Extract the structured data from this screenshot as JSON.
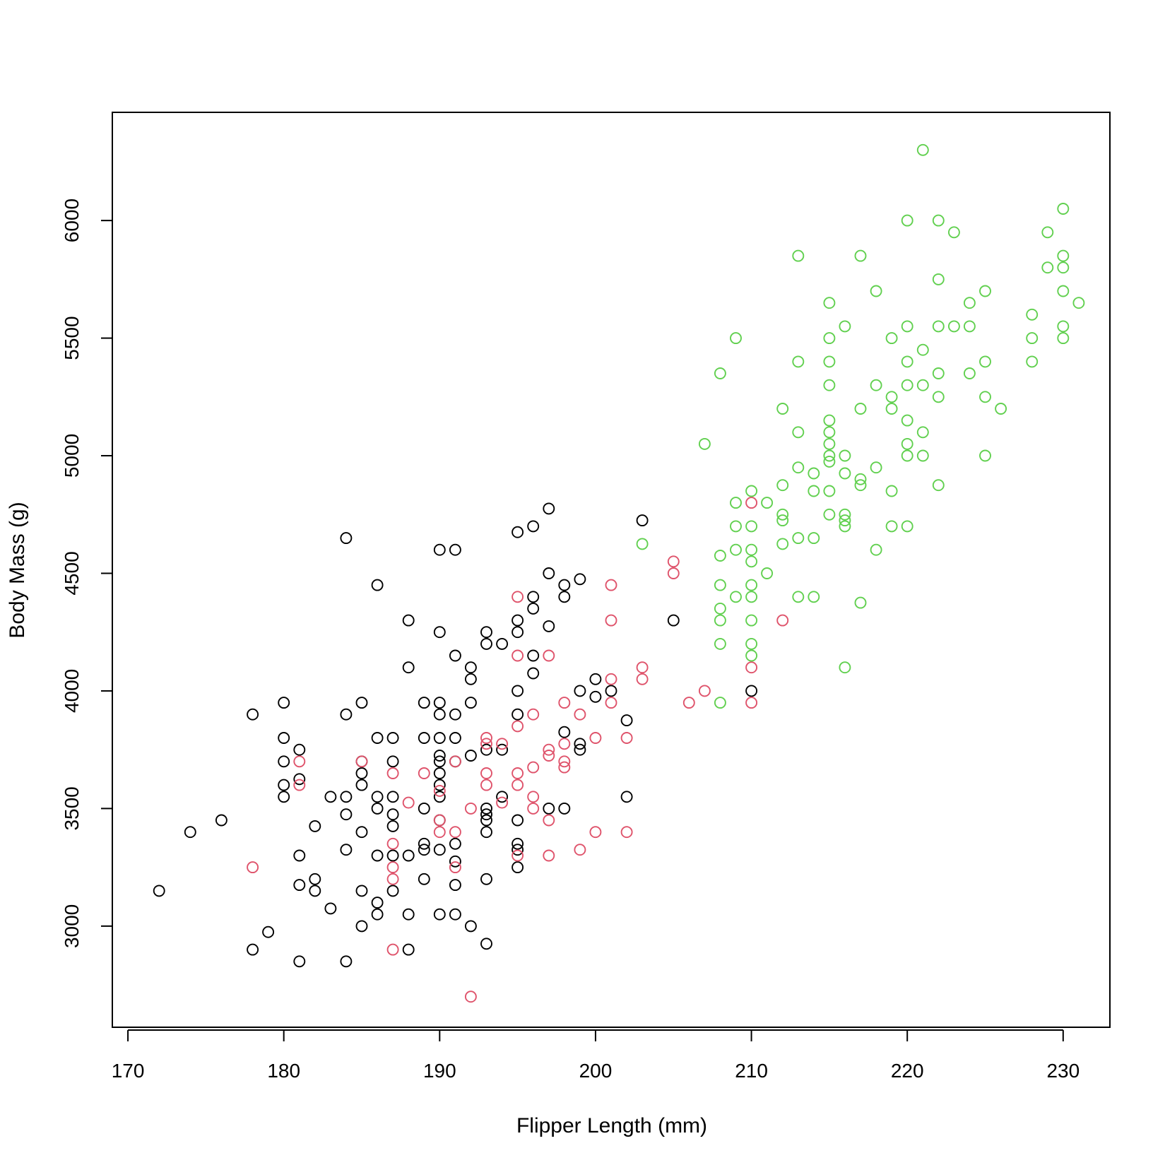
{
  "chart_data": {
    "type": "scatter",
    "title": "",
    "xlabel": "Flipper Length (mm)",
    "ylabel": "Body Mass (g)",
    "xlim": [
      169,
      233
    ],
    "ylim": [
      2570,
      6460
    ],
    "xticks": [
      170,
      180,
      190,
      200,
      210,
      220,
      230
    ],
    "yticks": [
      3000,
      3500,
      4000,
      4500,
      5000,
      5500,
      6000
    ],
    "grid": false,
    "legend": "none",
    "series": [
      {
        "color": "#000000",
        "points": [
          [
            172,
            3150
          ],
          [
            174,
            3400
          ],
          [
            176,
            3450
          ],
          [
            178,
            3900
          ],
          [
            178,
            2900
          ],
          [
            179,
            2975
          ],
          [
            180,
            3950
          ],
          [
            180,
            3800
          ],
          [
            180,
            3700
          ],
          [
            180,
            3600
          ],
          [
            180,
            3550
          ],
          [
            181,
            3750
          ],
          [
            181,
            3625
          ],
          [
            181,
            3300
          ],
          [
            181,
            3175
          ],
          [
            181,
            2850
          ],
          [
            182,
            3425
          ],
          [
            182,
            3200
          ],
          [
            182,
            3150
          ],
          [
            183,
            3550
          ],
          [
            183,
            3075
          ],
          [
            184,
            4650
          ],
          [
            184,
            3900
          ],
          [
            184,
            3550
          ],
          [
            184,
            3475
          ],
          [
            184,
            3325
          ],
          [
            184,
            2850
          ],
          [
            185,
            3950
          ],
          [
            185,
            3700
          ],
          [
            185,
            3650
          ],
          [
            185,
            3600
          ],
          [
            185,
            3400
          ],
          [
            185,
            3150
          ],
          [
            185,
            3000
          ],
          [
            186,
            4450
          ],
          [
            186,
            3800
          ],
          [
            186,
            3550
          ],
          [
            186,
            3500
          ],
          [
            186,
            3300
          ],
          [
            186,
            3100
          ],
          [
            186,
            3050
          ],
          [
            187,
            3800
          ],
          [
            187,
            3700
          ],
          [
            187,
            3550
          ],
          [
            187,
            3475
          ],
          [
            187,
            3425
          ],
          [
            187,
            3300
          ],
          [
            187,
            3150
          ],
          [
            188,
            4300
          ],
          [
            188,
            4100
          ],
          [
            188,
            3300
          ],
          [
            188,
            3050
          ],
          [
            188,
            2900
          ],
          [
            189,
            3950
          ],
          [
            189,
            3800
          ],
          [
            189,
            3500
          ],
          [
            189,
            3350
          ],
          [
            189,
            3325
          ],
          [
            189,
            3200
          ],
          [
            190,
            4600
          ],
          [
            190,
            4250
          ],
          [
            190,
            3950
          ],
          [
            190,
            3900
          ],
          [
            190,
            3800
          ],
          [
            190,
            3725
          ],
          [
            190,
            3700
          ],
          [
            190,
            3650
          ],
          [
            190,
            3600
          ],
          [
            190,
            3550
          ],
          [
            190,
            3450
          ],
          [
            190,
            3325
          ],
          [
            190,
            3050
          ],
          [
            191,
            4600
          ],
          [
            191,
            4150
          ],
          [
            191,
            3900
          ],
          [
            191,
            3800
          ],
          [
            191,
            3700
          ],
          [
            191,
            3350
          ],
          [
            191,
            3275
          ],
          [
            191,
            3175
          ],
          [
            191,
            3050
          ],
          [
            192,
            4100
          ],
          [
            192,
            4050
          ],
          [
            192,
            3950
          ],
          [
            192,
            3725
          ],
          [
            192,
            3000
          ],
          [
            193,
            4250
          ],
          [
            193,
            4200
          ],
          [
            193,
            3750
          ],
          [
            193,
            3500
          ],
          [
            193,
            3475
          ],
          [
            193,
            3450
          ],
          [
            193,
            3400
          ],
          [
            193,
            3200
          ],
          [
            193,
            2925
          ],
          [
            194,
            4200
          ],
          [
            194,
            3750
          ],
          [
            194,
            3550
          ],
          [
            195,
            4675
          ],
          [
            195,
            4300
          ],
          [
            195,
            4250
          ],
          [
            195,
            4000
          ],
          [
            195,
            3900
          ],
          [
            195,
            3450
          ],
          [
            195,
            3350
          ],
          [
            195,
            3325
          ],
          [
            195,
            3250
          ],
          [
            196,
            4700
          ],
          [
            196,
            4400
          ],
          [
            196,
            4350
          ],
          [
            196,
            4150
          ],
          [
            196,
            4075
          ],
          [
            197,
            4775
          ],
          [
            197,
            4500
          ],
          [
            197,
            4275
          ],
          [
            197,
            3500
          ],
          [
            198,
            4450
          ],
          [
            198,
            4400
          ],
          [
            198,
            3825
          ],
          [
            198,
            3500
          ],
          [
            199,
            4475
          ],
          [
            199,
            4000
          ],
          [
            199,
            3775
          ],
          [
            199,
            3750
          ],
          [
            200,
            4050
          ],
          [
            200,
            3975
          ],
          [
            201,
            4000
          ],
          [
            202,
            3875
          ],
          [
            202,
            3550
          ],
          [
            203,
            4725
          ],
          [
            205,
            4300
          ],
          [
            210,
            4000
          ]
        ]
      },
      {
        "color": "#DF536B",
        "points": [
          [
            178,
            3250
          ],
          [
            181,
            3700
          ],
          [
            181,
            3600
          ],
          [
            185,
            3700
          ],
          [
            187,
            3650
          ],
          [
            187,
            3350
          ],
          [
            187,
            3250
          ],
          [
            187,
            3200
          ],
          [
            187,
            2900
          ],
          [
            188,
            3525
          ],
          [
            189,
            3650
          ],
          [
            190,
            3575
          ],
          [
            190,
            3450
          ],
          [
            190,
            3400
          ],
          [
            191,
            3700
          ],
          [
            191,
            3400
          ],
          [
            191,
            3250
          ],
          [
            192,
            3500
          ],
          [
            192,
            2700
          ],
          [
            193,
            3800
          ],
          [
            193,
            3775
          ],
          [
            193,
            3650
          ],
          [
            193,
            3600
          ],
          [
            194,
            3775
          ],
          [
            194,
            3525
          ],
          [
            195,
            4400
          ],
          [
            195,
            4150
          ],
          [
            195,
            3850
          ],
          [
            195,
            3650
          ],
          [
            195,
            3600
          ],
          [
            195,
            3300
          ],
          [
            196,
            3900
          ],
          [
            196,
            3675
          ],
          [
            196,
            3550
          ],
          [
            196,
            3500
          ],
          [
            197,
            4150
          ],
          [
            197,
            3750
          ],
          [
            197,
            3725
          ],
          [
            197,
            3450
          ],
          [
            197,
            3300
          ],
          [
            198,
            3950
          ],
          [
            198,
            3775
          ],
          [
            198,
            3700
          ],
          [
            198,
            3675
          ],
          [
            199,
            3900
          ],
          [
            199,
            3325
          ],
          [
            200,
            3800
          ],
          [
            200,
            3400
          ],
          [
            201,
            4450
          ],
          [
            201,
            4300
          ],
          [
            201,
            4050
          ],
          [
            201,
            3950
          ],
          [
            202,
            3800
          ],
          [
            202,
            3400
          ],
          [
            203,
            4100
          ],
          [
            203,
            4050
          ],
          [
            205,
            4550
          ],
          [
            205,
            4500
          ],
          [
            206,
            3950
          ],
          [
            207,
            4000
          ],
          [
            210,
            4800
          ],
          [
            210,
            4100
          ],
          [
            210,
            3950
          ],
          [
            212,
            4300
          ]
        ]
      },
      {
        "color": "#61D04F",
        "points": [
          [
            203,
            4625
          ],
          [
            207,
            5050
          ],
          [
            208,
            5350
          ],
          [
            208,
            4575
          ],
          [
            208,
            4450
          ],
          [
            208,
            4350
          ],
          [
            208,
            4300
          ],
          [
            208,
            4200
          ],
          [
            208,
            3950
          ],
          [
            209,
            5500
          ],
          [
            209,
            4800
          ],
          [
            209,
            4700
          ],
          [
            209,
            4600
          ],
          [
            209,
            4400
          ],
          [
            210,
            4850
          ],
          [
            210,
            4700
          ],
          [
            210,
            4600
          ],
          [
            210,
            4550
          ],
          [
            210,
            4450
          ],
          [
            210,
            4400
          ],
          [
            210,
            4300
          ],
          [
            210,
            4200
          ],
          [
            210,
            4150
          ],
          [
            211,
            4800
          ],
          [
            211,
            4500
          ],
          [
            212,
            5200
          ],
          [
            212,
            4875
          ],
          [
            212,
            4750
          ],
          [
            212,
            4725
          ],
          [
            212,
            4625
          ],
          [
            213,
            5850
          ],
          [
            213,
            5400
          ],
          [
            213,
            5100
          ],
          [
            213,
            4950
          ],
          [
            213,
            4650
          ],
          [
            213,
            4400
          ],
          [
            214,
            4925
          ],
          [
            214,
            4850
          ],
          [
            214,
            4650
          ],
          [
            214,
            4400
          ],
          [
            215,
            5650
          ],
          [
            215,
            5500
          ],
          [
            215,
            5400
          ],
          [
            215,
            5300
          ],
          [
            215,
            5150
          ],
          [
            215,
            5100
          ],
          [
            215,
            5050
          ],
          [
            215,
            5000
          ],
          [
            215,
            4975
          ],
          [
            215,
            4850
          ],
          [
            215,
            4750
          ],
          [
            216,
            5550
          ],
          [
            216,
            5000
          ],
          [
            216,
            4925
          ],
          [
            216,
            4750
          ],
          [
            216,
            4725
          ],
          [
            216,
            4700
          ],
          [
            216,
            4100
          ],
          [
            217,
            5850
          ],
          [
            217,
            5200
          ],
          [
            217,
            4900
          ],
          [
            217,
            4875
          ],
          [
            217,
            4375
          ],
          [
            218,
            5700
          ],
          [
            218,
            5300
          ],
          [
            218,
            4950
          ],
          [
            218,
            4600
          ],
          [
            219,
            5500
          ],
          [
            219,
            5250
          ],
          [
            219,
            5200
          ],
          [
            219,
            4850
          ],
          [
            219,
            4700
          ],
          [
            220,
            6000
          ],
          [
            220,
            5550
          ],
          [
            220,
            5400
          ],
          [
            220,
            5300
          ],
          [
            220,
            5150
          ],
          [
            220,
            5050
          ],
          [
            220,
            5000
          ],
          [
            220,
            4700
          ],
          [
            221,
            6300
          ],
          [
            221,
            5450
          ],
          [
            221,
            5300
          ],
          [
            221,
            5100
          ],
          [
            221,
            5000
          ],
          [
            222,
            6000
          ],
          [
            222,
            5750
          ],
          [
            222,
            5550
          ],
          [
            222,
            5350
          ],
          [
            222,
            5250
          ],
          [
            222,
            4875
          ],
          [
            223,
            5950
          ],
          [
            223,
            5550
          ],
          [
            224,
            5650
          ],
          [
            224,
            5550
          ],
          [
            224,
            5350
          ],
          [
            225,
            5700
          ],
          [
            225,
            5400
          ],
          [
            225,
            5250
          ],
          [
            225,
            5000
          ],
          [
            226,
            5200
          ],
          [
            228,
            5600
          ],
          [
            228,
            5500
          ],
          [
            228,
            5400
          ],
          [
            229,
            5950
          ],
          [
            229,
            5800
          ],
          [
            230,
            6050
          ],
          [
            230,
            5850
          ],
          [
            230,
            5800
          ],
          [
            230,
            5700
          ],
          [
            230,
            5550
          ],
          [
            230,
            5500
          ],
          [
            231,
            5650
          ]
        ]
      }
    ]
  }
}
